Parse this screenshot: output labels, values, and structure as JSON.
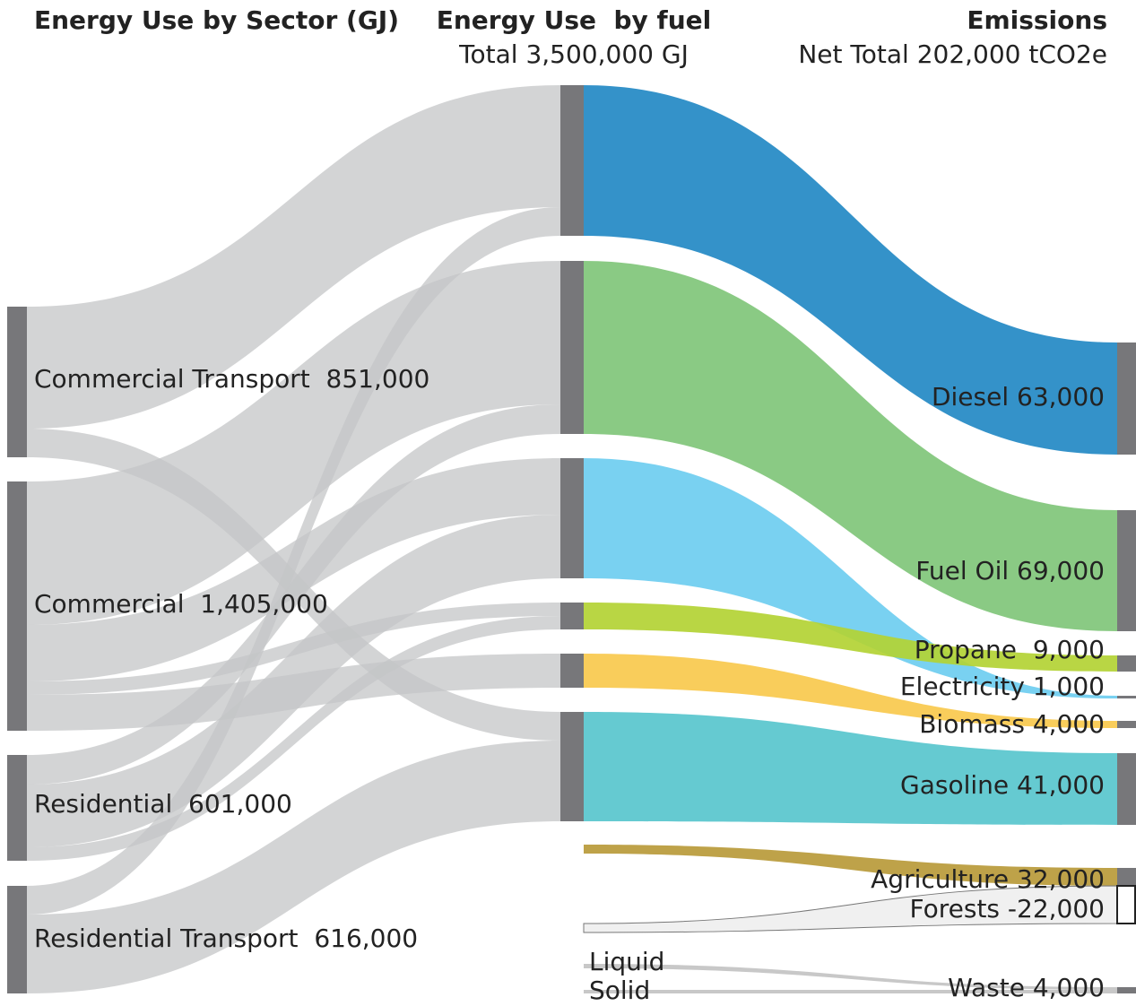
{
  "headers": {
    "sector": "Energy Use by Sector (GJ)",
    "fuel": "Energy Use  by fuel",
    "fuel_total": "Total 3,500,000 GJ",
    "emissions": "Emissions",
    "emissions_total": "Net Total 202,000 tCO2e"
  },
  "sectors": [
    "Commercial Transport  851,000",
    "Commercial  1,405,000",
    "Residential  601,000",
    "Residential Transport  616,000"
  ],
  "emissions": [
    "Diesel 63,000",
    "Fuel Oil 69,000",
    "Propane  9,000",
    "Electricity 1,000",
    "Biomass 4,000",
    "Gasoline 41,000",
    "Agriculture 32,000",
    "Forests -22,000",
    "Waste 4,000"
  ],
  "waste_inputs": [
    "Liquid",
    "Solid"
  ]
}
